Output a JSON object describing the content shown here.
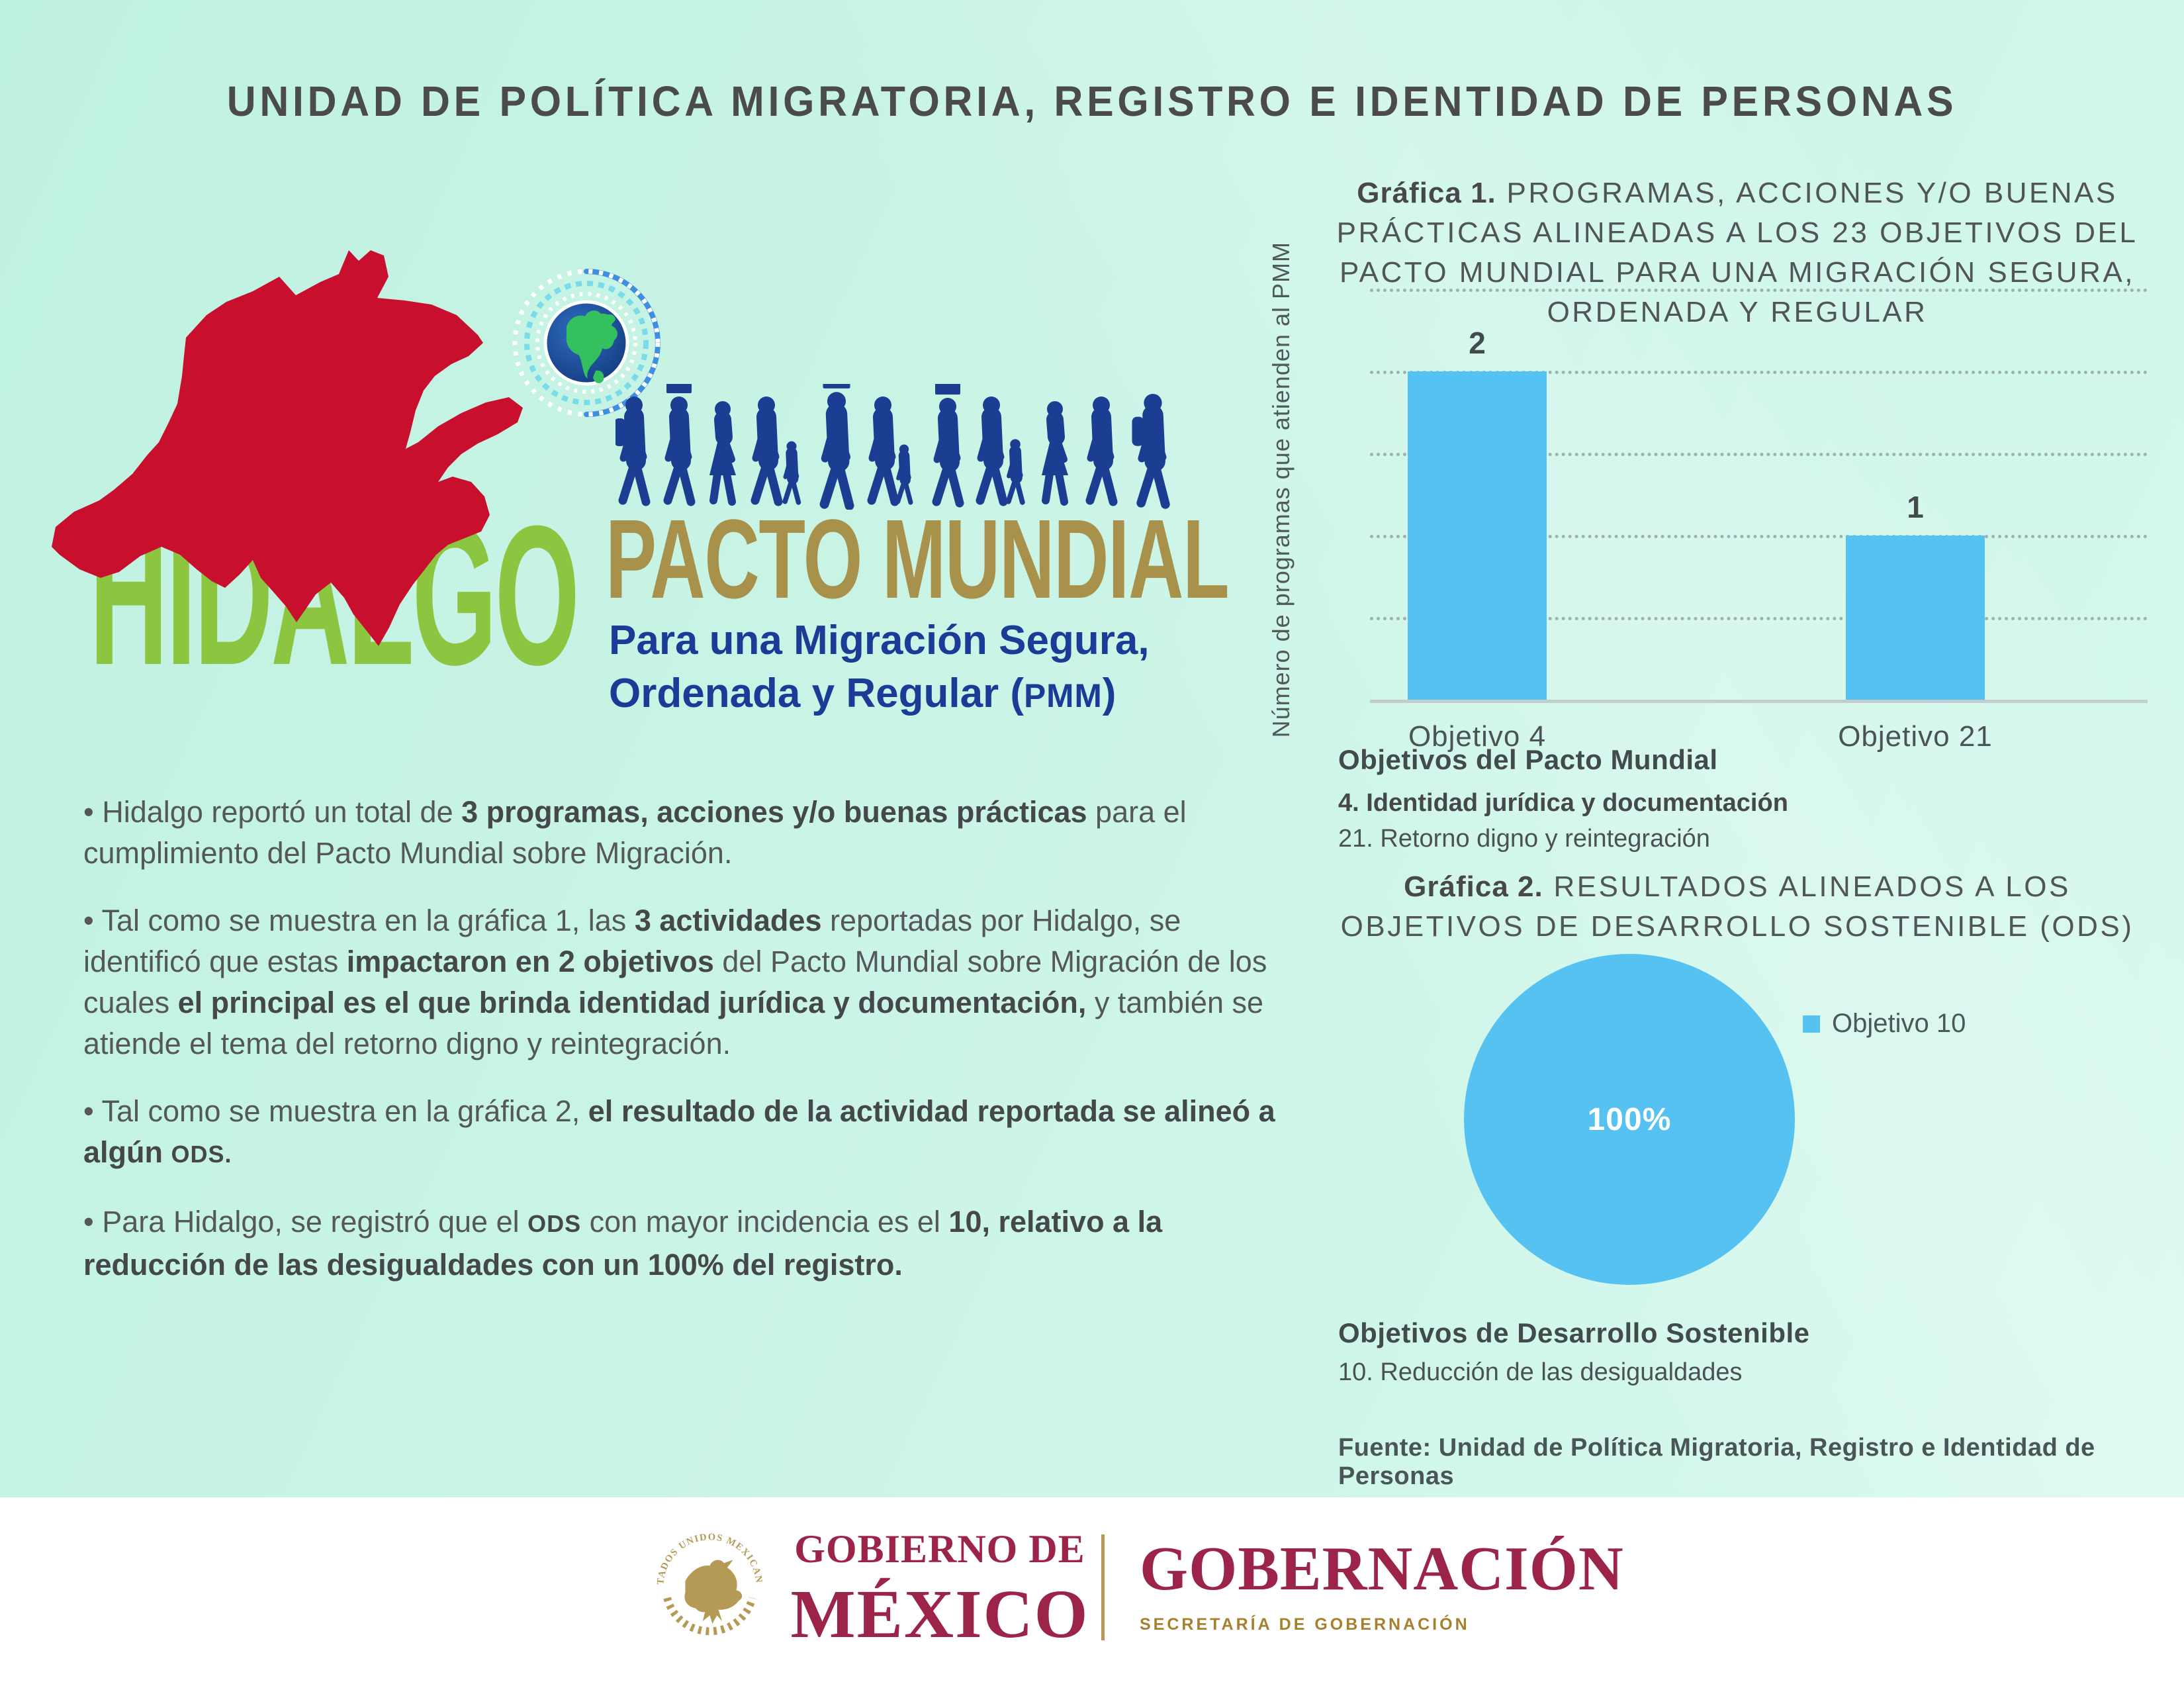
{
  "header": {
    "title": "UNIDAD DE POLÍTICA MIGRATORIA, REGISTRO E IDENTIDAD DE PERSONAS"
  },
  "hero": {
    "state_name": "HIDALGO",
    "campaign_title": "PACTO MUNDIAL",
    "subtitle_line1": "Para una Migración Segura,",
    "subtitle_line2_pre": "Ordenada y Regular (",
    "subtitle_acronym": "PMM",
    "subtitle_close": ")"
  },
  "bullets": {
    "b1": {
      "s0": "• Hidalgo reportó un total de ",
      "s1": "3 programas, acciones y/o buenas prácticas",
      "s2": " para el cumplimiento del Pacto Mundial sobre Migración."
    },
    "b2": {
      "s0": "• Tal como se muestra en la gráfica 1, las ",
      "s1": "3 actividades",
      "s2": " reportadas por Hidalgo, se identificó que estas ",
      "s3": "impactaron en 2 objetivos",
      "s4": " del Pacto Mundial sobre Migración de los cuales ",
      "s5": "el principal es el que brinda identidad jurídica y documentación,",
      "s6": " y también se atiende el tema del retorno digno y reintegración."
    },
    "b3": {
      "s0": "• Tal como se muestra en la gráfica 2, ",
      "s1": "el resultado de la actividad reportada se alineó a algún ",
      "s2": "ODS."
    },
    "b4": {
      "s0": "• Para Hidalgo, se registró que el ",
      "s1": "ODS",
      "s2": " con mayor incidencia es el ",
      "s3": "10, relativo a la reducción de las desigualdades con un 100% del registro."
    }
  },
  "chart1": {
    "title_bold": "Gráfica 1.",
    "title_rest": " PROGRAMAS, ACCIONES Y/O BUENAS PRÁCTICAS ALINEADAS A LOS 23 OBJETIVOS DEL PACTO MUNDIAL PARA UNA MIGRACIÓN SEGURA, ORDENADA Y REGULAR"
  },
  "chart2": {
    "title_bold": "Gráfica 2.",
    "title_rest": " RESULTADOS ALINEADOS A LOS OBJETIVOS DE DESARROLLO SOSTENIBLE (ODS)"
  },
  "source": {
    "text": "Fuente: Unidad de Política Migratoria, Registro e Identidad de Personas"
  },
  "footer": {
    "emblem_text": "ESTADOS UNIDOS MEXICANOS",
    "gobierno_line1": "GOBIERNO DE",
    "gobierno_line2": "MÉXICO",
    "secretaria": "GOBERNACIÓN",
    "secretaria_sub": "SECRETARÍA DE GOBERNACIÓN"
  },
  "colors": {
    "accent_blue": "#56c2f1",
    "deep_blue": "#1b3e92",
    "gold": "#a8914b",
    "green": "#8cc540",
    "map_red": "#c8102e",
    "maroon": "#9d2449",
    "footer_gold": "#a5802d",
    "emblem_gold": "#b49a55",
    "background_mint": "#c9f4e6"
  },
  "chart_data": [
    {
      "type": "bar",
      "title": "Gráfica 1. PROGRAMAS, ACCIONES Y/O BUENAS PRÁCTICAS ALINEADAS A LOS 23 OBJETIVOS DEL PACTO MUNDIAL PARA UNA MIGRACIÓN SEGURA, ORDENADA Y REGULAR",
      "categories": [
        "Objetivo 4",
        "Objetivo 21"
      ],
      "values": [
        2,
        1
      ],
      "value_labels": [
        "2",
        "1"
      ],
      "ylabel": "Número de programas que atienden al PMM",
      "xlabel": "Objetivos del Pacto Mundial",
      "category_notes": [
        "4. Identidad jurídica y documentación",
        "21. Retorno digno y reintegración"
      ],
      "ylim": [
        0,
        2.5
      ],
      "gridlines": [
        0.5,
        1.0,
        1.5,
        2.0,
        2.5
      ],
      "grid_style": "dotted horizontal",
      "bar_color": "#56c2f1"
    },
    {
      "type": "pie",
      "title": "Gráfica 2. RESULTADOS ALINEADOS A LOS OBJETIVOS DE DESARROLLO SOSTENIBLE (ODS)",
      "labels": [
        "Objetivo 10"
      ],
      "values": [
        100
      ],
      "slice_labels": [
        "100%"
      ],
      "colors": [
        "#56c2f1"
      ],
      "legend_position": "right",
      "xlabel": "Objetivos de Desarrollo Sostenible",
      "category_notes": [
        "10. Reducción de las desigualdades"
      ]
    }
  ]
}
